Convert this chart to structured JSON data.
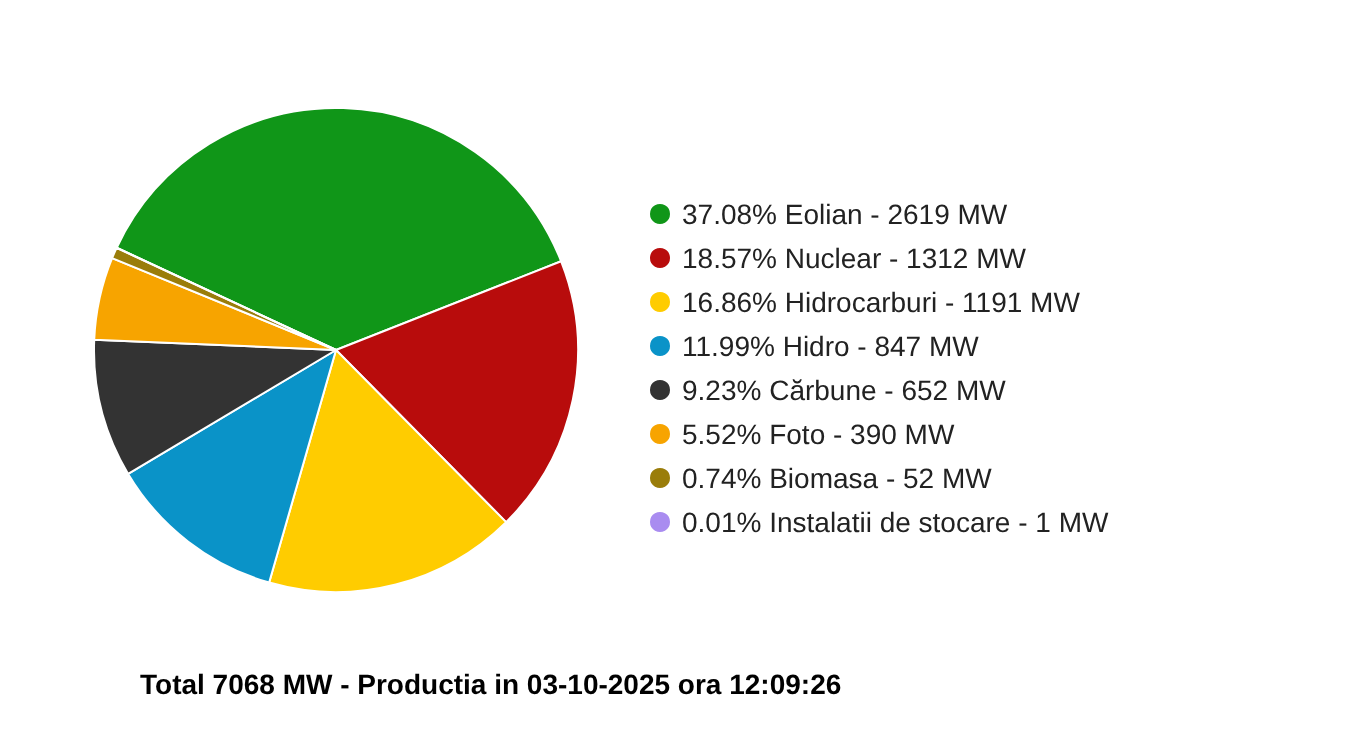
{
  "chart_data": {
    "type": "pie",
    "title": "Total 7068 MW - Productia in 03-10-2025 ora 12:09:26",
    "categories": [
      "37.08% Eolian - 2619 MW",
      "18.57% Nuclear - 1312 MW",
      "16.86% Hidrocarburi - 1191 MW",
      "11.99% Hidro - 847 MW",
      "9.23% Cărbune - 652 MW",
      "5.52% Foto - 390 MW",
      "0.74% Biomasa - 52 MW",
      "0.01% Instalatii de stocare - 1 MW"
    ],
    "values": [
      37.08,
      18.57,
      16.86,
      11.99,
      9.23,
      5.52,
      0.74,
      0.01
    ],
    "colors": [
      "#109618",
      "#b80c0c",
      "#ffcc00",
      "#0a93c8",
      "#333333",
      "#f7a400",
      "#9a7d0a",
      "#a98cf0"
    ],
    "legend": "right"
  }
}
